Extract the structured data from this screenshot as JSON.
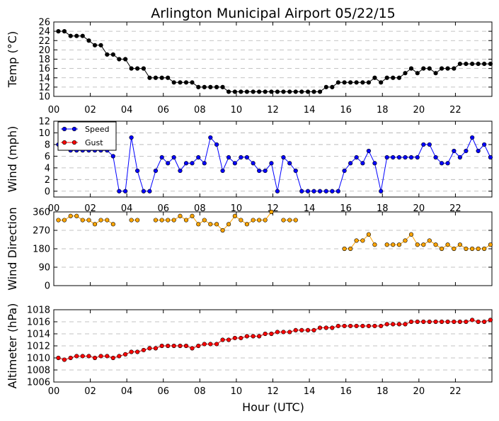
{
  "figure": {
    "title": "Arlington Municipal Airport 05/22/15",
    "xlabel": "Hour (UTC)"
  },
  "chart_data": [
    {
      "id": "temp",
      "type": "line",
      "ylabel": "Temp ($^\\circ$C)",
      "ylabel_display": "Temp (°C)",
      "ylim": [
        10,
        26
      ],
      "yticks": [
        10,
        12,
        14,
        16,
        18,
        20,
        22,
        24,
        26
      ],
      "grid": true,
      "xlim": [
        0,
        24
      ],
      "x_tick_labels": [
        "00",
        "02",
        "04",
        "06",
        "08",
        "10",
        "12",
        "14",
        "16",
        "18",
        "20",
        "22"
      ],
      "series": [
        {
          "color": "#000000",
          "x": [
            0.25,
            0.58,
            0.92,
            1.25,
            1.58,
            1.92,
            2.25,
            2.58,
            2.92,
            3.25,
            3.58,
            3.92,
            4.25,
            4.58,
            4.92,
            5.25,
            5.58,
            5.92,
            6.25,
            6.58,
            6.92,
            7.25,
            7.58,
            7.92,
            8.25,
            8.58,
            8.92,
            9.25,
            9.58,
            9.92,
            10.25,
            10.58,
            10.92,
            11.25,
            11.58,
            11.92,
            12.25,
            12.58,
            12.92,
            13.25,
            13.58,
            13.92,
            14.25,
            14.58,
            14.92,
            15.25,
            15.58,
            15.92,
            16.25,
            16.58,
            16.92,
            17.25,
            17.58,
            17.92,
            18.25,
            18.58,
            18.92,
            19.25,
            19.58,
            19.92,
            20.25,
            20.58,
            20.92,
            21.25,
            21.58,
            21.92,
            22.25,
            22.58,
            22.92,
            23.25,
            23.58,
            23.92
          ],
          "y": [
            24,
            24,
            23,
            23,
            23,
            22,
            21,
            21,
            19,
            19,
            18,
            18,
            16,
            16,
            16,
            14,
            14,
            14,
            14,
            13,
            13,
            13,
            13,
            12,
            12,
            12,
            12,
            12,
            11,
            11,
            11,
            11,
            11,
            11,
            11,
            11,
            11,
            11,
            11,
            11,
            11,
            11,
            11,
            11,
            12,
            12,
            13,
            13,
            13,
            13,
            13,
            13,
            14,
            13,
            14,
            14,
            14,
            15,
            16,
            15,
            16,
            16,
            15,
            16,
            16,
            16,
            17,
            17,
            17,
            17,
            17,
            17
          ]
        }
      ]
    },
    {
      "id": "wind",
      "type": "line",
      "ylabel": "Wind (mph)",
      "ylim": [
        -1,
        12
      ],
      "yticks": [
        0,
        2,
        4,
        6,
        8,
        10,
        12
      ],
      "grid": true,
      "xlim": [
        0,
        24
      ],
      "x_tick_labels": [
        "00",
        "02",
        "04",
        "06",
        "08",
        "10",
        "12",
        "14",
        "16",
        "18",
        "20",
        "22"
      ],
      "legend": {
        "placement": "upper-left",
        "entries": [
          "Speed",
          "Gust"
        ]
      },
      "series": [
        {
          "name": "Speed",
          "color": "#0000ff",
          "x": [
            0.25,
            0.58,
            0.92,
            1.25,
            1.58,
            1.92,
            2.25,
            2.58,
            2.92,
            3.25,
            3.58,
            3.92,
            4.25,
            4.58,
            4.92,
            5.25,
            5.58,
            5.92,
            6.25,
            6.58,
            6.92,
            7.25,
            7.58,
            7.92,
            8.25,
            8.58,
            8.92,
            9.25,
            9.58,
            9.92,
            10.25,
            10.58,
            10.92,
            11.25,
            11.58,
            11.92,
            12.25,
            12.58,
            12.92,
            13.25,
            13.58,
            13.92,
            14.25,
            14.58,
            14.92,
            15.25,
            15.58,
            15.92,
            16.25,
            16.58,
            16.92,
            17.25,
            17.58,
            17.92,
            18.25,
            18.58,
            18.92,
            19.25,
            19.58,
            19.92,
            20.25,
            20.58,
            20.92,
            21.25,
            21.58,
            21.92,
            22.25,
            22.58,
            22.92,
            23.25,
            23.58,
            23.92
          ],
          "y": [
            8,
            8,
            7,
            7,
            7,
            7,
            7,
            7,
            7,
            6,
            0,
            0,
            9.2,
            3.5,
            0,
            0,
            3.5,
            5.8,
            4.8,
            5.8,
            3.5,
            4.8,
            4.8,
            5.8,
            4.8,
            9.2,
            8,
            3.5,
            5.8,
            4.8,
            5.8,
            5.8,
            4.8,
            3.5,
            3.5,
            4.8,
            0,
            5.8,
            4.8,
            3.5,
            0,
            0,
            0,
            0,
            0,
            0,
            0,
            3.5,
            4.8,
            5.8,
            4.8,
            6.9,
            4.8,
            0,
            5.8,
            5.8,
            5.8,
            5.8,
            5.8,
            5.8,
            8,
            8,
            5.8,
            4.8,
            4.8,
            6.9,
            5.8,
            6.9,
            9.2,
            6.9,
            8,
            5.8
          ]
        },
        {
          "name": "Gust",
          "color": "#ff0000",
          "x": [],
          "y": []
        }
      ]
    },
    {
      "id": "direction",
      "type": "scatter",
      "ylabel": "Wind Direction",
      "ylim": [
        0,
        360
      ],
      "yticks": [
        0,
        90,
        180,
        270,
        360
      ],
      "grid": true,
      "xlim": [
        0,
        24
      ],
      "x_tick_labels": [
        "00",
        "02",
        "04",
        "06",
        "08",
        "10",
        "12",
        "14",
        "16",
        "18",
        "20",
        "22"
      ],
      "series": [
        {
          "color": "#ffa500",
          "segments": [
            {
              "x": [
                0.25,
                0.58,
                0.92,
                1.25,
                1.58,
                1.92,
                2.25,
                2.58,
                2.92,
                3.25
              ],
              "y": [
                320,
                320,
                340,
                340,
                320,
                320,
                300,
                320,
                320,
                300
              ]
            },
            {
              "x": [
                4.25,
                4.58
              ],
              "y": [
                320,
                320
              ]
            },
            {
              "x": [
                5.58,
                5.92,
                6.25,
                6.58,
                6.92,
                7.25,
                7.58,
                7.92,
                8.25,
                8.58,
                8.92,
                9.25,
                9.58,
                9.92,
                10.25,
                10.58,
                10.92,
                11.25,
                11.58,
                11.92
              ],
              "y": [
                320,
                320,
                320,
                320,
                340,
                320,
                340,
                300,
                320,
                300,
                300,
                270,
                300,
                340,
                320,
                300,
                320,
                320,
                320,
                360
              ]
            },
            {
              "x": [
                12.58,
                12.92,
                13.25
              ],
              "y": [
                320,
                320,
                320
              ]
            },
            {
              "x": [
                15.92,
                16.25,
                16.58,
                16.92,
                17.25,
                17.58
              ],
              "y": [
                180,
                180,
                220,
                220,
                250,
                200
              ]
            },
            {
              "x": [
                18.25,
                18.58,
                18.92,
                19.25,
                19.58,
                19.92,
                20.25,
                20.58,
                20.92,
                21.25,
                21.58,
                21.92,
                22.25,
                22.58,
                22.92,
                23.25,
                23.58,
                23.92
              ],
              "y": [
                200,
                200,
                200,
                220,
                250,
                200,
                200,
                220,
                200,
                180,
                200,
                180,
                200,
                180,
                180,
                180,
                180,
                200
              ]
            }
          ]
        }
      ]
    },
    {
      "id": "altimeter",
      "type": "line",
      "ylabel": "Altimeter (hPa)",
      "ylim": [
        1006,
        1018
      ],
      "yticks": [
        1006,
        1008,
        1010,
        1012,
        1014,
        1016,
        1018
      ],
      "grid": true,
      "xlim": [
        0,
        24
      ],
      "x_tick_labels": [
        "00",
        "02",
        "04",
        "06",
        "08",
        "10",
        "12",
        "14",
        "16",
        "18",
        "20",
        "22"
      ],
      "series": [
        {
          "color": "#ff0000",
          "x": [
            0.25,
            0.58,
            0.92,
            1.25,
            1.58,
            1.92,
            2.25,
            2.58,
            2.92,
            3.25,
            3.58,
            3.92,
            4.25,
            4.58,
            4.92,
            5.25,
            5.58,
            5.92,
            6.25,
            6.58,
            6.92,
            7.25,
            7.58,
            7.92,
            8.25,
            8.58,
            8.92,
            9.25,
            9.58,
            9.92,
            10.25,
            10.58,
            10.92,
            11.25,
            11.58,
            11.92,
            12.25,
            12.58,
            12.92,
            13.25,
            13.58,
            13.92,
            14.25,
            14.58,
            14.92,
            15.25,
            15.58,
            15.92,
            16.25,
            16.58,
            16.92,
            17.25,
            17.58,
            17.92,
            18.25,
            18.58,
            18.92,
            19.25,
            19.58,
            19.92,
            20.25,
            20.58,
            20.92,
            21.25,
            21.58,
            21.92,
            22.25,
            22.58,
            22.92,
            23.25,
            23.58,
            23.92
          ],
          "y": [
            1010,
            1009.7,
            1010,
            1010.3,
            1010.3,
            1010.3,
            1010,
            1010.3,
            1010.3,
            1010,
            1010.3,
            1010.6,
            1011,
            1011,
            1011.3,
            1011.6,
            1011.6,
            1012,
            1012,
            1012,
            1012,
            1012,
            1011.6,
            1012,
            1012.3,
            1012.3,
            1012.3,
            1013,
            1013,
            1013.3,
            1013.3,
            1013.6,
            1013.6,
            1013.6,
            1014,
            1014,
            1014.3,
            1014.3,
            1014.3,
            1014.6,
            1014.6,
            1014.6,
            1014.6,
            1015,
            1015,
            1015,
            1015.3,
            1015.3,
            1015.3,
            1015.3,
            1015.3,
            1015.3,
            1015.3,
            1015.3,
            1015.6,
            1015.6,
            1015.6,
            1015.6,
            1016,
            1016,
            1016,
            1016,
            1016,
            1016,
            1016,
            1016,
            1016,
            1016,
            1016.3,
            1016,
            1016,
            1016.3
          ]
        }
      ]
    }
  ]
}
